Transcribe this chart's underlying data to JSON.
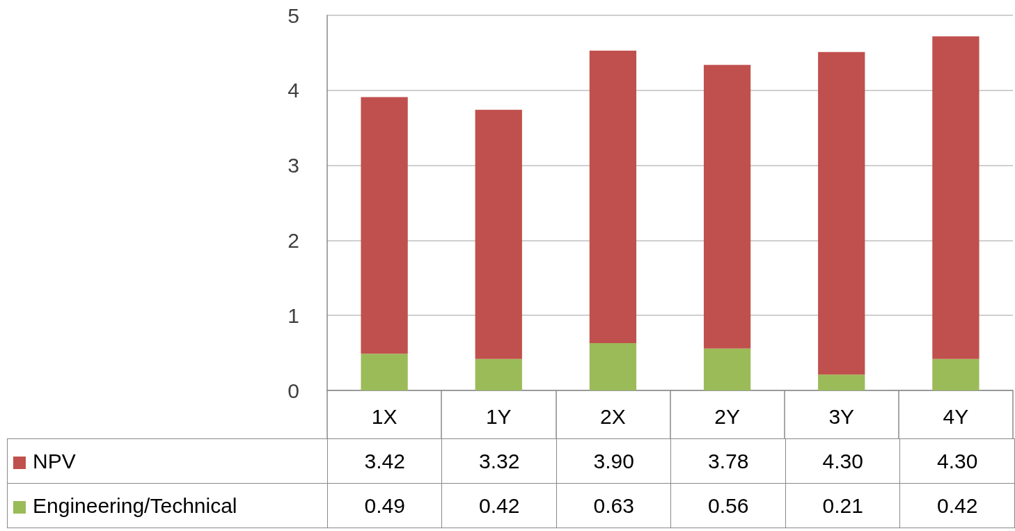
{
  "chart_data": {
    "type": "bar",
    "stacked": true,
    "categories": [
      "1X",
      "1Y",
      "2X",
      "2Y",
      "3Y",
      "4Y"
    ],
    "series": [
      {
        "name": "Engineering/Technical",
        "color": "#9bbb59",
        "values": [
          0.49,
          0.42,
          0.63,
          0.56,
          0.21,
          0.42
        ],
        "value_labels": [
          "0.49",
          "0.42",
          "0.63",
          "0.56",
          "0.21",
          "0.42"
        ]
      },
      {
        "name": "NPV",
        "color": "#c0504d",
        "values": [
          3.42,
          3.32,
          3.9,
          3.78,
          4.3,
          4.3
        ],
        "value_labels": [
          "3.42",
          "3.32",
          "3.90",
          "3.78",
          "4.30",
          "4.30"
        ]
      }
    ],
    "ylim": [
      0,
      5
    ],
    "yticks": [
      0,
      1,
      2,
      3,
      4,
      5
    ],
    "grid": "y",
    "legend": "bottom"
  }
}
